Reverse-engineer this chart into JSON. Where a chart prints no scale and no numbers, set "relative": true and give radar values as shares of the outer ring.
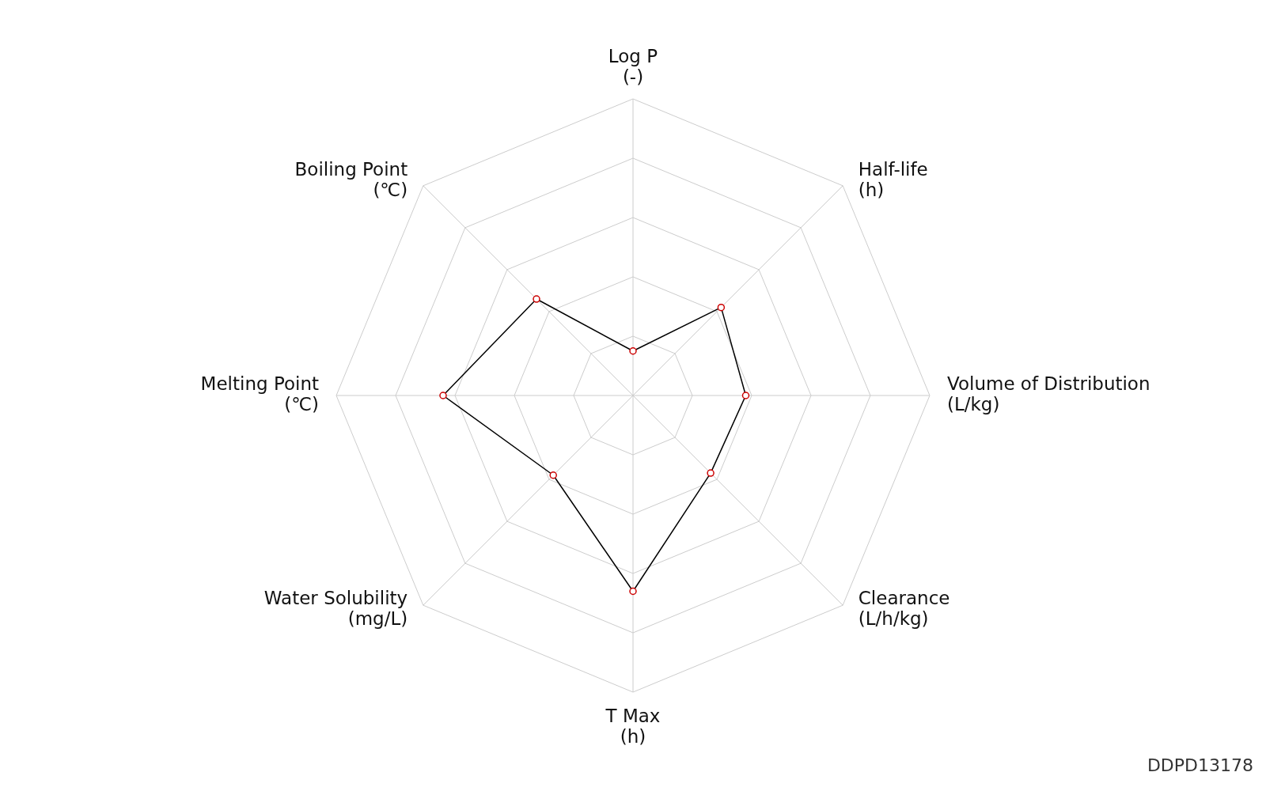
{
  "chart_data": {
    "type": "radar",
    "relative": true,
    "grid": true,
    "marker": "circle",
    "categories": [
      "Log P\n(-)",
      "Half-life\n(h)",
      "Volume of Distribution\n(L/kg)",
      "Clearance\n(L/h/kg)",
      "T Max\n(h)",
      "Water Solubility\n(mg/L)",
      "Melting Point\n(℃)",
      "Boiling Point\n(℃)"
    ],
    "series": [
      {
        "color": "#000000",
        "values": [
          0.15,
          0.42,
          0.38,
          0.37,
          0.66,
          0.38,
          0.64,
          0.46
        ]
      }
    ],
    "annotations": [
      "DDPD13178"
    ]
  }
}
